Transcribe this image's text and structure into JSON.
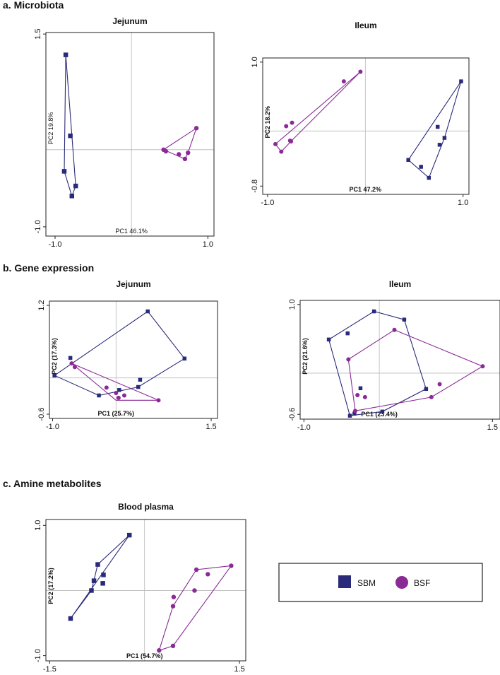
{
  "colors": {
    "sbm": "#2a2a7a",
    "bsf": "#8a2a96",
    "frame": "#222222",
    "grid": "#b8b8b8"
  },
  "sections": {
    "a": "a. Microbiota",
    "b": "b. Gene expression",
    "c": "c. Amine metabolites"
  },
  "legend": {
    "sbm_label": "SBM",
    "bsf_label": "BSF",
    "sbm_icon": "square-marker-icon",
    "bsf_icon": "circle-marker-icon"
  },
  "chart_data": [
    {
      "id": "micro-jejunum",
      "type": "scatter",
      "title": "Jejunum",
      "xlabel": "PC1 46.1%",
      "ylabel": "PC2 19.8%",
      "xlim": [
        -1.12,
        1.08
      ],
      "ylim": [
        -1.12,
        1.52
      ],
      "xticks": [
        -1.0,
        1.0
      ],
      "xtick_labels": [
        "-1.0",
        "1.0"
      ],
      "yticks": [
        -1.0,
        1.5
      ],
      "ytick_labels": [
        "-1.0",
        "1.5"
      ],
      "series": [
        {
          "name": "SBM",
          "points": [
            [
              -0.86,
              1.23
            ],
            [
              -0.8,
              0.18
            ],
            [
              -0.88,
              -0.28
            ],
            [
              -0.73,
              -0.47
            ],
            [
              -0.78,
              -0.6
            ]
          ],
          "hull": [
            [
              -0.86,
              1.23
            ],
            [
              -0.73,
              -0.47
            ],
            [
              -0.78,
              -0.6
            ],
            [
              -0.88,
              -0.28
            ]
          ]
        },
        {
          "name": "BSF",
          "points": [
            [
              0.42,
              0.0
            ],
            [
              0.45,
              -0.02
            ],
            [
              0.62,
              -0.06
            ],
            [
              0.7,
              -0.12
            ],
            [
              0.74,
              -0.04
            ],
            [
              0.85,
              0.28
            ]
          ],
          "hull": [
            [
              0.42,
              0.0
            ],
            [
              0.85,
              0.28
            ],
            [
              0.74,
              -0.04
            ],
            [
              0.7,
              -0.12
            ]
          ]
        }
      ]
    },
    {
      "id": "micro-ileum",
      "type": "scatter",
      "title": "Ileum",
      "xlabel": "PC1 47.2%",
      "ylabel": "PC2 18.2%",
      "xlim": [
        -1.05,
        1.06
      ],
      "ylim": [
        -0.92,
        1.06
      ],
      "xticks": [
        -1.0,
        1.0
      ],
      "xtick_labels": [
        "-1.0",
        "1.0"
      ],
      "yticks": [
        1.0,
        -0.8
      ],
      "ytick_labels": [
        "1.0",
        "-0.8"
      ],
      "series": [
        {
          "name": "SBM",
          "points": [
            [
              0.98,
              0.72
            ],
            [
              0.74,
              0.06
            ],
            [
              0.76,
              -0.2
            ],
            [
              0.81,
              -0.1
            ],
            [
              0.44,
              -0.42
            ],
            [
              0.57,
              -0.52
            ],
            [
              0.65,
              -0.68
            ]
          ],
          "hull": [
            [
              0.98,
              0.72
            ],
            [
              0.44,
              -0.42
            ],
            [
              0.65,
              -0.68
            ],
            [
              0.81,
              -0.1
            ]
          ]
        },
        {
          "name": "BSF",
          "points": [
            [
              -0.92,
              -0.19
            ],
            [
              -0.86,
              -0.3
            ],
            [
              -0.81,
              0.07
            ],
            [
              -0.75,
              0.12
            ],
            [
              -0.76,
              -0.15
            ],
            [
              -0.77,
              -0.14
            ],
            [
              -0.22,
              0.72
            ],
            [
              -0.05,
              0.86
            ]
          ],
          "hull": [
            [
              -0.05,
              0.86
            ],
            [
              -0.92,
              -0.19
            ],
            [
              -0.86,
              -0.3
            ],
            [
              -0.76,
              -0.15
            ]
          ]
        }
      ]
    },
    {
      "id": "gene-jejunum",
      "type": "scatter",
      "title": "Jejunum",
      "xlabel": "PC1 (25.7%)",
      "ylabel": "PC2 (17.3%)",
      "xlim": [
        -1.05,
        1.6
      ],
      "ylim": [
        -0.67,
        1.27
      ],
      "xticks": [
        -1.0,
        1.5
      ],
      "xtick_labels": [
        "-1.0",
        "1.5"
      ],
      "yticks": [
        1.2,
        -0.6
      ],
      "ytick_labels": [
        "1.2",
        "-0.6"
      ],
      "series": [
        {
          "name": "SBM",
          "points": [
            [
              -0.97,
              0.04
            ],
            [
              -0.72,
              0.33
            ],
            [
              -0.27,
              -0.29
            ],
            [
              0.05,
              -0.2
            ],
            [
              0.35,
              -0.15
            ],
            [
              0.38,
              -0.03
            ],
            [
              0.5,
              1.1
            ],
            [
              1.08,
              0.32
            ]
          ],
          "hull": [
            [
              -0.97,
              0.04
            ],
            [
              0.5,
              1.1
            ],
            [
              1.08,
              0.32
            ],
            [
              0.35,
              -0.15
            ],
            [
              -0.27,
              -0.29
            ]
          ]
        },
        {
          "name": "BSF",
          "points": [
            [
              -0.7,
              0.24
            ],
            [
              -0.65,
              0.18
            ],
            [
              -0.15,
              -0.16
            ],
            [
              0.0,
              -0.25
            ],
            [
              0.04,
              -0.33
            ],
            [
              0.13,
              -0.29
            ],
            [
              0.67,
              -0.37
            ]
          ],
          "hull": [
            [
              -0.7,
              0.24
            ],
            [
              0.67,
              -0.37
            ],
            [
              0.0,
              -0.37
            ]
          ]
        }
      ]
    },
    {
      "id": "gene-ileum",
      "type": "scatter",
      "title": "Ileum",
      "xlabel": "PC1 (23.4%)",
      "ylabel": "PC2 (21.6%)",
      "xlim": [
        -1.05,
        1.6
      ],
      "ylim": [
        -0.67,
        1.06
      ],
      "xticks": [
        -1.0,
        1.5
      ],
      "xtick_labels": [
        "-1.0",
        "1.5"
      ],
      "yticks": [
        1.0,
        -0.6
      ],
      "ytick_labels": [
        "1.0",
        "-0.6"
      ],
      "series": [
        {
          "name": "SBM",
          "points": [
            [
              -0.67,
              0.49
            ],
            [
              -0.42,
              0.58
            ],
            [
              -0.39,
              -0.62
            ],
            [
              -0.33,
              -0.59
            ],
            [
              -0.25,
              -0.22
            ],
            [
              -0.07,
              0.9
            ],
            [
              0.33,
              0.78
            ],
            [
              0.62,
              -0.23
            ],
            [
              0.04,
              -0.56
            ]
          ],
          "hull": [
            [
              -0.67,
              0.49
            ],
            [
              -0.07,
              0.9
            ],
            [
              0.33,
              0.78
            ],
            [
              0.62,
              -0.23
            ],
            [
              0.04,
              -0.56
            ],
            [
              -0.39,
              -0.62
            ]
          ]
        },
        {
          "name": "BSF",
          "points": [
            [
              -0.41,
              0.2
            ],
            [
              -0.32,
              -0.55
            ],
            [
              -0.29,
              -0.32
            ],
            [
              -0.19,
              -0.35
            ],
            [
              0.2,
              0.63
            ],
            [
              0.8,
              -0.16
            ],
            [
              0.69,
              -0.35
            ],
            [
              1.37,
              0.1
            ]
          ],
          "hull": [
            [
              -0.41,
              0.2
            ],
            [
              0.2,
              0.63
            ],
            [
              1.37,
              0.1
            ],
            [
              0.69,
              -0.35
            ],
            [
              -0.32,
              -0.55
            ]
          ]
        }
      ]
    },
    {
      "id": "amine-plasma",
      "type": "scatter",
      "title": "Blood plasma",
      "xlabel": "PC1 (54.7%)",
      "ylabel": "PC2 (17.2%)",
      "xlim": [
        -1.56,
        1.6
      ],
      "ylim": [
        -1.08,
        1.09
      ],
      "xticks": [
        -1.5,
        1.5
      ],
      "xtick_labels": [
        "-1.5",
        "1.5"
      ],
      "yticks": [
        1.0,
        -1.0
      ],
      "ytick_labels": [
        "1.0",
        "-1.0"
      ],
      "series": [
        {
          "name": "SBM",
          "points": [
            [
              -1.17,
              -0.43
            ],
            [
              -0.84,
              0.0
            ],
            [
              -0.8,
              0.15
            ],
            [
              -0.74,
              0.4
            ],
            [
              -0.65,
              0.24
            ],
            [
              -0.66,
              0.11
            ],
            [
              -0.24,
              0.85
            ]
          ],
          "hull": [
            [
              -1.17,
              -0.43
            ],
            [
              -0.24,
              0.85
            ],
            [
              -0.74,
              0.4
            ],
            [
              -0.84,
              0.0
            ]
          ]
        },
        {
          "name": "BSF",
          "points": [
            [
              0.23,
              -0.92
            ],
            [
              0.45,
              -0.85
            ],
            [
              0.45,
              -0.24
            ],
            [
              0.46,
              -0.1
            ],
            [
              0.79,
              0.0
            ],
            [
              0.82,
              0.32
            ],
            [
              1.0,
              0.25
            ],
            [
              1.37,
              0.38
            ]
          ],
          "hull": [
            [
              0.23,
              -0.92
            ],
            [
              0.45,
              -0.85
            ],
            [
              1.37,
              0.38
            ],
            [
              0.82,
              0.32
            ],
            [
              0.45,
              -0.24
            ]
          ]
        }
      ]
    }
  ]
}
